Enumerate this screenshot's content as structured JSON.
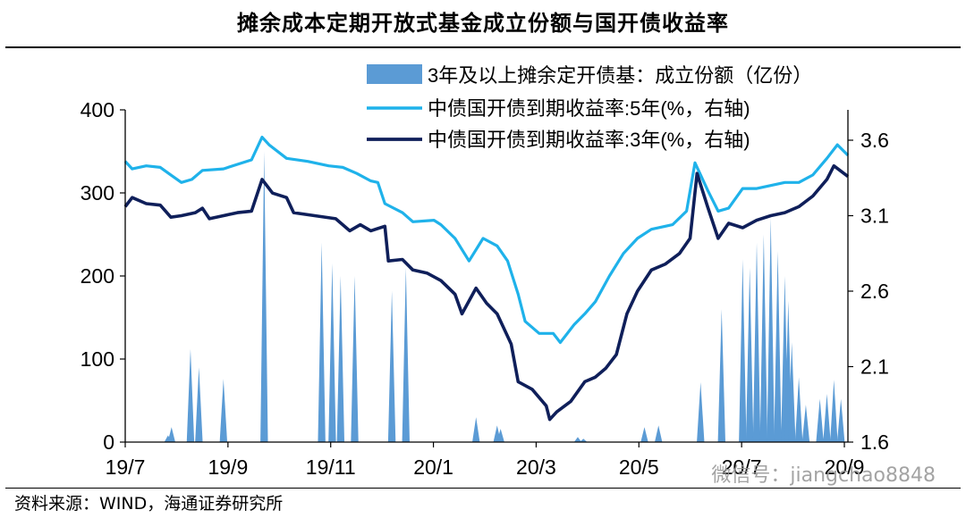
{
  "title": "摊余成本定期开放式基金成立份额与国开债收益率",
  "source": "资料来源：WIND，海通证券研究所",
  "watermark": "微信号：jiangchao8848",
  "colors": {
    "bars": "#5b9bd5",
    "line_5y": "#1fb2ea",
    "line_3y": "#0f1f5a",
    "axis": "#000000"
  },
  "chart_data": {
    "type": "bar+line",
    "x_tick_labels": [
      "19/7",
      "19/9",
      "19/11",
      "20/1",
      "20/3",
      "20/5",
      "20/7",
      "20/9"
    ],
    "y_left": {
      "ticks": [
        0,
        100,
        200,
        300,
        400
      ],
      "range": [
        0,
        400
      ]
    },
    "y_right": {
      "ticks": [
        1.6,
        2.1,
        2.6,
        3.1,
        3.6
      ],
      "range": [
        1.6,
        3.8
      ]
    },
    "series": [
      {
        "name": "3年及以上摊余定开债基：成立份额（亿份）",
        "type": "bar",
        "axis": "left",
        "points": [
          [
            0.61,
            8
          ],
          [
            0.66,
            18
          ],
          [
            0.93,
            112
          ],
          [
            1.05,
            90
          ],
          [
            1.4,
            76
          ],
          [
            1.98,
            350
          ],
          [
            2.8,
            240
          ],
          [
            2.95,
            215
          ],
          [
            3.07,
            200
          ],
          [
            3.27,
            200
          ],
          [
            3.8,
            182
          ],
          [
            4.0,
            210
          ],
          [
            5.0,
            30
          ],
          [
            5.3,
            20
          ],
          [
            5.35,
            16
          ],
          [
            6.45,
            6
          ],
          [
            6.53,
            4
          ],
          [
            7.4,
            18
          ],
          [
            7.6,
            20
          ],
          [
            8.2,
            72
          ],
          [
            8.5,
            160
          ],
          [
            8.8,
            220
          ],
          [
            8.9,
            210
          ],
          [
            9.0,
            240
          ],
          [
            9.1,
            250
          ],
          [
            9.2,
            270
          ],
          [
            9.3,
            230
          ],
          [
            9.4,
            200
          ],
          [
            9.45,
            170
          ],
          [
            9.5,
            120
          ],
          [
            9.6,
            78
          ],
          [
            9.7,
            45
          ],
          [
            9.9,
            52
          ],
          [
            10.0,
            58
          ],
          [
            10.1,
            75
          ],
          [
            10.2,
            52
          ]
        ]
      },
      {
        "name": "中债国开债到期收益率:5年(%，右轴)",
        "type": "line",
        "axis": "right",
        "points": [
          [
            0.0,
            3.46
          ],
          [
            0.1,
            3.41
          ],
          [
            0.3,
            3.43
          ],
          [
            0.5,
            3.42
          ],
          [
            0.65,
            3.37
          ],
          [
            0.8,
            3.32
          ],
          [
            0.95,
            3.34
          ],
          [
            1.1,
            3.4
          ],
          [
            1.4,
            3.41
          ],
          [
            1.6,
            3.44
          ],
          [
            1.8,
            3.47
          ],
          [
            1.95,
            3.62
          ],
          [
            2.05,
            3.57
          ],
          [
            2.3,
            3.48
          ],
          [
            2.6,
            3.46
          ],
          [
            2.9,
            3.43
          ],
          [
            3.1,
            3.42
          ],
          [
            3.3,
            3.38
          ],
          [
            3.5,
            3.33
          ],
          [
            3.6,
            3.32
          ],
          [
            3.7,
            3.18
          ],
          [
            3.95,
            3.12
          ],
          [
            4.1,
            3.06
          ],
          [
            4.4,
            3.07
          ],
          [
            4.5,
            3.04
          ],
          [
            4.7,
            2.95
          ],
          [
            4.9,
            2.8
          ],
          [
            5.1,
            2.95
          ],
          [
            5.3,
            2.9
          ],
          [
            5.45,
            2.8
          ],
          [
            5.6,
            2.58
          ],
          [
            5.7,
            2.4
          ],
          [
            5.9,
            2.32
          ],
          [
            6.1,
            2.32
          ],
          [
            6.2,
            2.26
          ],
          [
            6.4,
            2.38
          ],
          [
            6.55,
            2.45
          ],
          [
            6.7,
            2.53
          ],
          [
            6.9,
            2.7
          ],
          [
            7.1,
            2.85
          ],
          [
            7.3,
            2.95
          ],
          [
            7.5,
            3.01
          ],
          [
            7.8,
            3.04
          ],
          [
            8.0,
            3.13
          ],
          [
            8.12,
            3.45
          ],
          [
            8.3,
            3.27
          ],
          [
            8.45,
            3.13
          ],
          [
            8.6,
            3.15
          ],
          [
            8.8,
            3.28
          ],
          [
            9.0,
            3.28
          ],
          [
            9.2,
            3.3
          ],
          [
            9.4,
            3.32
          ],
          [
            9.6,
            3.32
          ],
          [
            9.8,
            3.37
          ],
          [
            10.0,
            3.48
          ],
          [
            10.15,
            3.57
          ],
          [
            10.3,
            3.5
          ]
        ]
      },
      {
        "name": "中债国开债到期收益率:3年(%，右轴)",
        "type": "line",
        "axis": "right",
        "points": [
          [
            0.0,
            3.16
          ],
          [
            0.1,
            3.22
          ],
          [
            0.3,
            3.18
          ],
          [
            0.5,
            3.17
          ],
          [
            0.65,
            3.09
          ],
          [
            0.8,
            3.1
          ],
          [
            1.0,
            3.12
          ],
          [
            1.1,
            3.15
          ],
          [
            1.2,
            3.08
          ],
          [
            1.4,
            3.1
          ],
          [
            1.6,
            3.12
          ],
          [
            1.8,
            3.13
          ],
          [
            1.95,
            3.34
          ],
          [
            2.1,
            3.25
          ],
          [
            2.3,
            3.22
          ],
          [
            2.4,
            3.12
          ],
          [
            2.7,
            3.1
          ],
          [
            3.0,
            3.08
          ],
          [
            3.2,
            3.0
          ],
          [
            3.35,
            3.04
          ],
          [
            3.5,
            3.0
          ],
          [
            3.7,
            3.03
          ],
          [
            3.75,
            2.8
          ],
          [
            3.95,
            2.81
          ],
          [
            4.1,
            2.74
          ],
          [
            4.3,
            2.72
          ],
          [
            4.5,
            2.67
          ],
          [
            4.7,
            2.58
          ],
          [
            4.8,
            2.45
          ],
          [
            5.0,
            2.62
          ],
          [
            5.15,
            2.52
          ],
          [
            5.3,
            2.45
          ],
          [
            5.5,
            2.25
          ],
          [
            5.6,
            2.0
          ],
          [
            5.8,
            1.95
          ],
          [
            6.0,
            1.84
          ],
          [
            6.05,
            1.75
          ],
          [
            6.15,
            1.8
          ],
          [
            6.35,
            1.87
          ],
          [
            6.55,
            2.0
          ],
          [
            6.7,
            2.03
          ],
          [
            6.85,
            2.09
          ],
          [
            7.0,
            2.18
          ],
          [
            7.15,
            2.45
          ],
          [
            7.3,
            2.6
          ],
          [
            7.5,
            2.74
          ],
          [
            7.7,
            2.78
          ],
          [
            7.9,
            2.85
          ],
          [
            8.05,
            2.95
          ],
          [
            8.15,
            3.38
          ],
          [
            8.3,
            3.16
          ],
          [
            8.45,
            2.95
          ],
          [
            8.6,
            3.05
          ],
          [
            8.8,
            3.02
          ],
          [
            9.0,
            3.07
          ],
          [
            9.2,
            3.1
          ],
          [
            9.4,
            3.12
          ],
          [
            9.6,
            3.16
          ],
          [
            9.8,
            3.23
          ],
          [
            10.0,
            3.34
          ],
          [
            10.1,
            3.43
          ],
          [
            10.3,
            3.36
          ]
        ]
      }
    ],
    "x_range": [
      0,
      10.3
    ]
  }
}
